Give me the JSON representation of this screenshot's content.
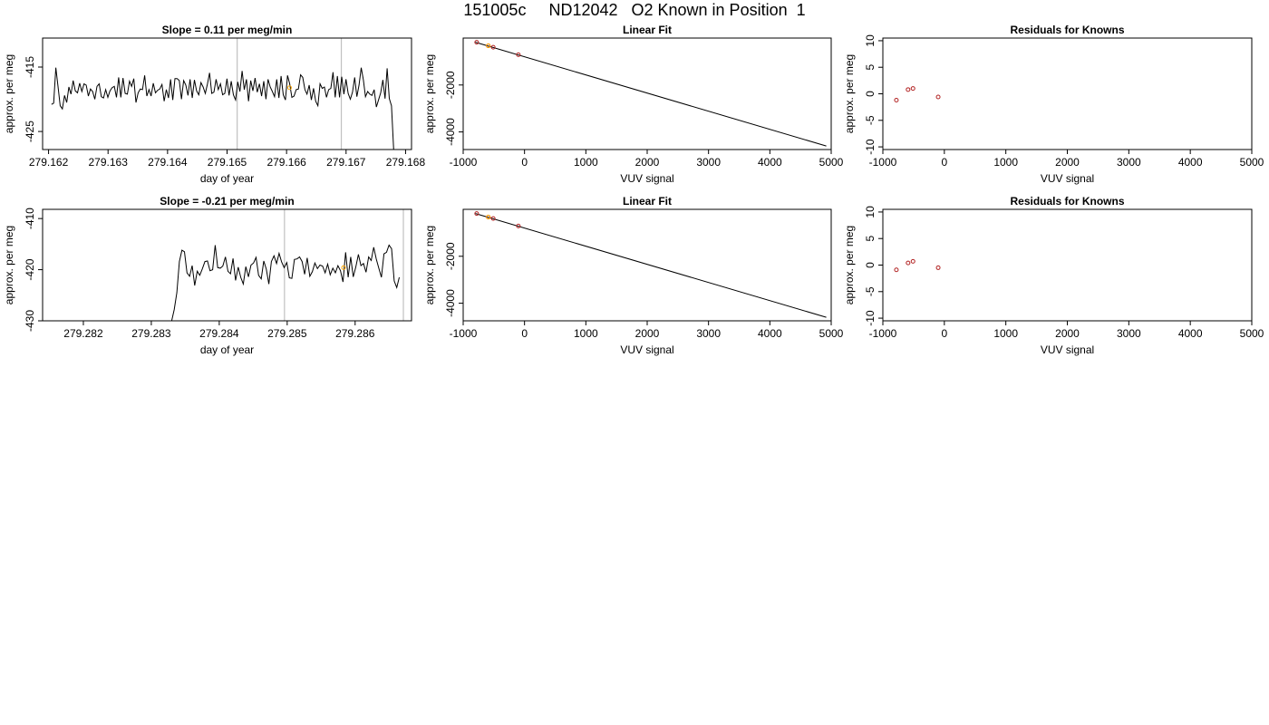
{
  "page_title": "151005c     ND12042   O2 Known in Position  1",
  "colors": {
    "line": "#000000",
    "grid": "#c0c0c0",
    "known": "#b22222",
    "current": "#ffa500"
  },
  "chart_data": [
    {
      "type": "line",
      "title": "Slope =  0.11  per meg/min",
      "xlabel": "day of year",
      "ylabel": "approx. per meg",
      "xlim": [
        279.1619,
        279.1681
      ],
      "ylim": [
        -427.8,
        -410.5
      ],
      "xticks": [
        "279.162",
        "279.163",
        "279.164",
        "279.165",
        "279.166",
        "279.167",
        "279.168"
      ],
      "xtick_values": [
        279.162,
        279.163,
        279.164,
        279.165,
        279.166,
        279.167,
        279.168
      ],
      "yticks": [
        "-415",
        "-425"
      ],
      "ytick_values": [
        -415,
        -425
      ],
      "vlines": [
        279.16517,
        279.16692
      ],
      "x_start": 279.16205,
      "x_end": 279.1678,
      "values": [
        -420.8,
        -420.6,
        -415.1,
        -418.0,
        -421.0,
        -421.5,
        -419.4,
        -420.5,
        -418.1,
        -419.2,
        -417.1,
        -418.7,
        -419.0,
        -417.5,
        -418.8,
        -417.6,
        -417.8,
        -419.5,
        -418.4,
        -418.8,
        -420.0,
        -418.0,
        -417.6,
        -419.6,
        -419.8,
        -418.5,
        -419.7,
        -418.7,
        -418.2,
        -418.0,
        -419.7,
        -416.6,
        -419.7,
        -416.7,
        -419.1,
        -419.2,
        -417.2,
        -418.0,
        -416.8,
        -420.5,
        -419.0,
        -418.4,
        -418.5,
        -416.3,
        -419.5,
        -418.5,
        -419.5,
        -417.5,
        -419.0,
        -418.6,
        -418.4,
        -417.7,
        -420.3,
        -418.5,
        -419.8,
        -416.9,
        -420.1,
        -416.8,
        -416.8,
        -417.1,
        -420.0,
        -417.1,
        -417.8,
        -419.4,
        -416.9,
        -419.8,
        -417.0,
        -418.7,
        -419.3,
        -417.4,
        -418.1,
        -419.1,
        -417.6,
        -415.9,
        -419.1,
        -418.9,
        -416.9,
        -418.5,
        -417.6,
        -419.3,
        -419.1,
        -416.8,
        -419.4,
        -417.2,
        -419.3,
        -420.1,
        -417.3,
        -418.8,
        -415.6,
        -418.5,
        -416.9,
        -420.3,
        -417.1,
        -418.7,
        -416.7,
        -418.9,
        -417.6,
        -419.5,
        -417.2,
        -420.0,
        -416.9,
        -418.1,
        -418.8,
        -419.6,
        -416.9,
        -419.8,
        -416.4,
        -419.3,
        -420.1,
        -416.3,
        -417.6,
        -419.7,
        -419.5,
        -418.5,
        -418.4,
        -416.2,
        -416.6,
        -418.5,
        -419.2,
        -417.8,
        -420.1,
        -418.3,
        -420.3,
        -421.0,
        -417.6,
        -418.3,
        -418.1,
        -419.7,
        -418.5,
        -418.3,
        -415.8,
        -419.7,
        -416.4,
        -419.7,
        -416.5,
        -419.2,
        -416.9,
        -419.1,
        -420.0,
        -418.9,
        -416.6,
        -419.6,
        -417.8,
        -415.1,
        -417.0,
        -419.6,
        -418.8,
        -419.2,
        -419.4,
        -418.5,
        -421.2,
        -420.1,
        -419.0,
        -417.0,
        -419.9,
        -415.2,
        -419.9,
        -421.0,
        -427.8
      ],
      "points": [
        {
          "x": 279.16605,
          "y": -418.2,
          "series": "current"
        }
      ]
    },
    {
      "type": "scatter",
      "title": "Linear Fit",
      "xlabel": "VUV signal",
      "ylabel": "approx. per meg",
      "xlim": [
        -1000,
        5000
      ],
      "ylim": [
        -4750,
        0
      ],
      "xticks": [
        "-1000",
        "0",
        "1000",
        "2000",
        "3000",
        "4000",
        "5000"
      ],
      "xtick_values": [
        -1000,
        0,
        1000,
        2000,
        3000,
        4000,
        5000
      ],
      "yticks": [
        "-2000",
        "-4000"
      ],
      "ytick_values": [
        -2000,
        -4000
      ],
      "fit_line": {
        "x": [
          -800,
          4920
        ],
        "y": [
          -180,
          -4600
        ]
      },
      "points": [
        {
          "x": -780,
          "y": -180,
          "series": "known"
        },
        {
          "x": -590,
          "y": -330,
          "series": "known"
        },
        {
          "x": -590,
          "y": -330,
          "series": "current"
        },
        {
          "x": -510,
          "y": -390,
          "series": "known"
        },
        {
          "x": -100,
          "y": -710,
          "series": "known"
        }
      ]
    },
    {
      "type": "scatter",
      "title": "Residuals for Knowns",
      "xlabel": "VUV signal",
      "ylabel": "approx. per meg",
      "xlim": [
        -1000,
        5000
      ],
      "ylim": [
        -10.5,
        10.5
      ],
      "xticks": [
        "-1000",
        "0",
        "1000",
        "2000",
        "3000",
        "4000",
        "5000"
      ],
      "xtick_values": [
        -1000,
        0,
        1000,
        2000,
        3000,
        4000,
        5000
      ],
      "yticks": [
        "-10",
        "-5",
        "0",
        "5",
        "10"
      ],
      "ytick_values": [
        -10,
        -5,
        0,
        5,
        10
      ],
      "points": [
        {
          "x": -780,
          "y": -1.2,
          "series": "known"
        },
        {
          "x": -590,
          "y": 0.8,
          "series": "known"
        },
        {
          "x": -510,
          "y": 1.0,
          "series": "known"
        },
        {
          "x": -100,
          "y": -0.6,
          "series": "known"
        }
      ]
    },
    {
      "type": "line",
      "title": "Slope =  -0.21  per meg/min",
      "xlabel": "day of year",
      "ylabel": "approx. per meg",
      "xlim": [
        279.2814,
        279.28683
      ],
      "ylim": [
        -430,
        -408.2
      ],
      "xticks": [
        "279.282",
        "279.283",
        "279.284",
        "279.285",
        "279.286"
      ],
      "xtick_values": [
        279.282,
        279.283,
        279.284,
        279.285,
        279.286
      ],
      "yticks": [
        "-410",
        "-420",
        "-430"
      ],
      "ytick_values": [
        -410,
        -420,
        -430
      ],
      "vlines": [
        279.28496,
        279.28671
      ],
      "x_start": 279.2833,
      "x_end": 279.28665,
      "values": [
        -430.0,
        -427.8,
        -424.5,
        -418.4,
        -416.2,
        -416.5,
        -420.6,
        -421.3,
        -419.2,
        -423.1,
        -420.3,
        -421.1,
        -419.8,
        -418.4,
        -418.3,
        -420.2,
        -420.0,
        -415.2,
        -419.6,
        -419.7,
        -419.3,
        -417.5,
        -420.3,
        -420.8,
        -417.8,
        -422.1,
        -419.5,
        -421.5,
        -422.8,
        -419.4,
        -421.4,
        -419.1,
        -418.7,
        -417.6,
        -421.1,
        -421.8,
        -418.3,
        -419.9,
        -422.8,
        -418.4,
        -417.3,
        -418.8,
        -416.8,
        -418.5,
        -419.6,
        -418.6,
        -421.6,
        -421.7,
        -418.0,
        -417.9,
        -417.5,
        -418.4,
        -420.9,
        -417.7,
        -421.3,
        -420.4,
        -418.7,
        -419.8,
        -419.1,
        -419.3,
        -420.6,
        -418.9,
        -421.0,
        -419.7,
        -420.6,
        -419.2,
        -420.2,
        -422.4,
        -416.6,
        -421.5,
        -417.5,
        -421.4,
        -419.5,
        -417.0,
        -419.2,
        -418.8,
        -420.5,
        -417.5,
        -418.2,
        -415.6,
        -417.9,
        -419.7,
        -421.5,
        -416.9,
        -416.6,
        -415.2,
        -415.9,
        -422.2,
        -423.5,
        -421.5
      ],
      "points": [
        {
          "x": 279.28583,
          "y": -419.6,
          "series": "current"
        }
      ]
    },
    {
      "type": "scatter",
      "title": "Linear Fit",
      "xlabel": "VUV signal",
      "ylabel": "approx. per meg",
      "xlim": [
        -1000,
        5000
      ],
      "ylim": [
        -4750,
        0
      ],
      "xticks": [
        "-1000",
        "0",
        "1000",
        "2000",
        "3000",
        "4000",
        "5000"
      ],
      "xtick_values": [
        -1000,
        0,
        1000,
        2000,
        3000,
        4000,
        5000
      ],
      "yticks": [
        "-2000",
        "-4000"
      ],
      "ytick_values": [
        -2000,
        -4000
      ],
      "fit_line": {
        "x": [
          -800,
          4920
        ],
        "y": [
          -180,
          -4600
        ]
      },
      "points": [
        {
          "x": -780,
          "y": -180,
          "series": "known"
        },
        {
          "x": -590,
          "y": -330,
          "series": "known"
        },
        {
          "x": -590,
          "y": -330,
          "series": "current"
        },
        {
          "x": -510,
          "y": -390,
          "series": "known"
        },
        {
          "x": -100,
          "y": -710,
          "series": "known"
        }
      ]
    },
    {
      "type": "scatter",
      "title": "Residuals for Knowns",
      "xlabel": "VUV signal",
      "ylabel": "approx. per meg",
      "xlim": [
        -1000,
        5000
      ],
      "ylim": [
        -10.5,
        10.5
      ],
      "xticks": [
        "-1000",
        "0",
        "1000",
        "2000",
        "3000",
        "4000",
        "5000"
      ],
      "xtick_values": [
        -1000,
        0,
        1000,
        2000,
        3000,
        4000,
        5000
      ],
      "yticks": [
        "-10",
        "-5",
        "0",
        "5",
        "10"
      ],
      "ytick_values": [
        -10,
        -5,
        0,
        5,
        10
      ],
      "points": [
        {
          "x": -780,
          "y": -0.9,
          "series": "known"
        },
        {
          "x": -590,
          "y": 0.4,
          "series": "known"
        },
        {
          "x": -510,
          "y": 0.7,
          "series": "known"
        },
        {
          "x": -100,
          "y": -0.5,
          "series": "known"
        }
      ]
    }
  ]
}
